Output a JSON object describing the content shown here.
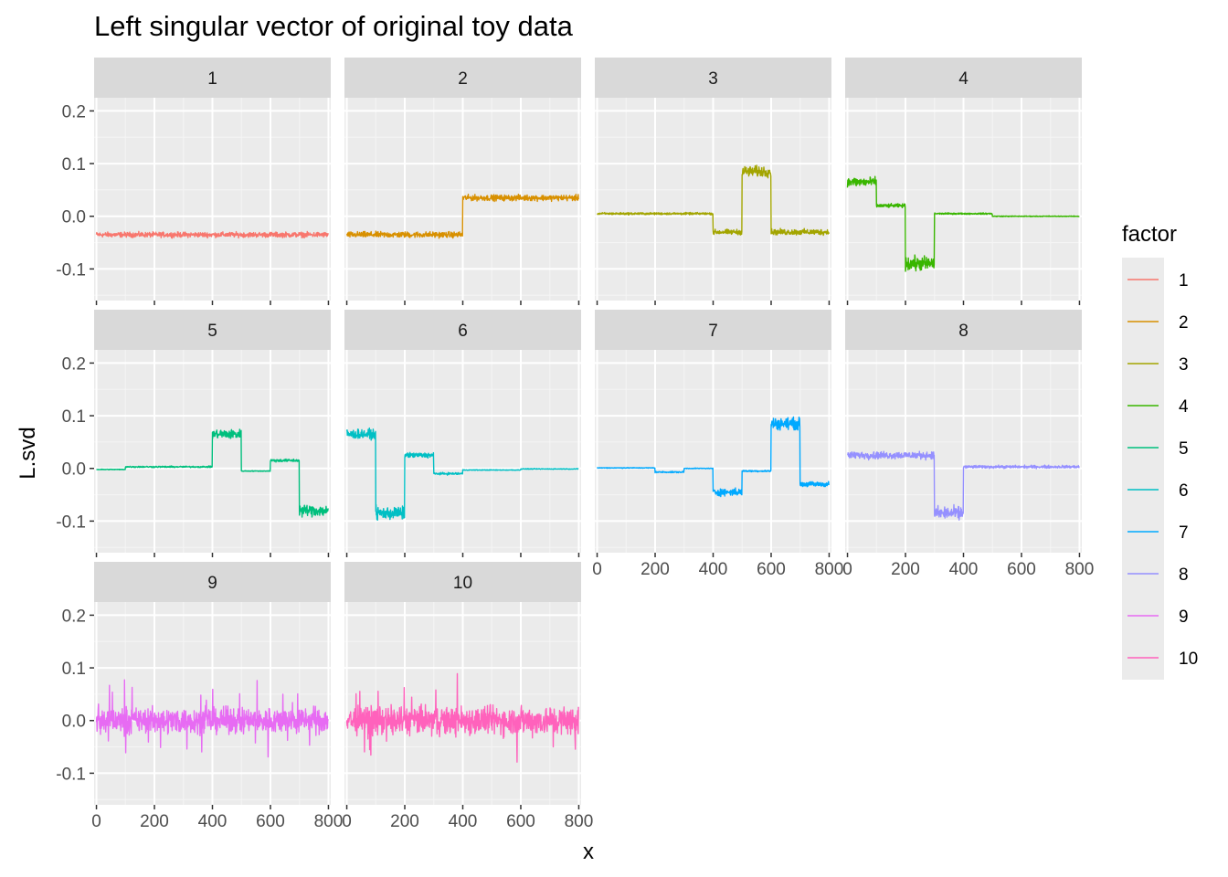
{
  "chart_data": {
    "type": "line",
    "title": "Left singular vector of original toy data",
    "xlabel": "x",
    "ylabel": "L.svd",
    "xlim": [
      -8,
      808
    ],
    "ylim": [
      -0.16,
      0.225
    ],
    "x_ticks": [
      0,
      200,
      400,
      600,
      800
    ],
    "y_ticks": [
      -0.1,
      0.0,
      0.1,
      0.2
    ],
    "y_tick_labels": [
      "-0.1",
      "0.0",
      "0.1",
      "0.2"
    ],
    "n_points": 800,
    "grid": true,
    "facet_layout": "wrap 4 columns, free x axes shown on bottom row of each column",
    "legend": {
      "title": "factor",
      "placement": "right",
      "entries": [
        "1",
        "2",
        "3",
        "4",
        "5",
        "6",
        "7",
        "8",
        "9",
        "10"
      ]
    },
    "series": [
      {
        "name": "1",
        "color": "#F8766D",
        "segments": [
          [
            0,
            800,
            -0.035,
            0.007
          ]
        ]
      },
      {
        "name": "2",
        "color": "#D89000",
        "segments": [
          [
            0,
            400,
            -0.035,
            0.008
          ],
          [
            400,
            800,
            0.035,
            0.008
          ]
        ]
      },
      {
        "name": "3",
        "color": "#A3A500",
        "segments": [
          [
            0,
            400,
            0.005,
            0.003
          ],
          [
            400,
            500,
            -0.03,
            0.007
          ],
          [
            500,
            600,
            0.085,
            0.015
          ],
          [
            600,
            800,
            -0.03,
            0.008
          ]
        ]
      },
      {
        "name": "4",
        "color": "#39B600",
        "segments": [
          [
            0,
            100,
            0.065,
            0.013
          ],
          [
            100,
            200,
            0.02,
            0.005
          ],
          [
            200,
            300,
            -0.09,
            0.02
          ],
          [
            300,
            500,
            0.005,
            0.002
          ],
          [
            500,
            800,
            0.0,
            0.001
          ]
        ]
      },
      {
        "name": "5",
        "color": "#00BF7D",
        "segments": [
          [
            0,
            100,
            -0.002,
            0.001
          ],
          [
            100,
            400,
            0.003,
            0.002
          ],
          [
            400,
            500,
            0.065,
            0.013
          ],
          [
            500,
            600,
            -0.005,
            0.001
          ],
          [
            600,
            700,
            0.015,
            0.004
          ],
          [
            700,
            800,
            -0.08,
            0.016
          ]
        ]
      },
      {
        "name": "6",
        "color": "#00BFC4",
        "segments": [
          [
            0,
            100,
            0.065,
            0.013
          ],
          [
            100,
            200,
            -0.085,
            0.018
          ],
          [
            200,
            300,
            0.025,
            0.007
          ],
          [
            300,
            400,
            -0.01,
            0.003
          ],
          [
            400,
            600,
            -0.003,
            0.001
          ],
          [
            600,
            800,
            -0.001,
            0.001
          ]
        ]
      },
      {
        "name": "7",
        "color": "#00A9FF",
        "segments": [
          [
            0,
            200,
            0.001,
            0.001
          ],
          [
            200,
            300,
            -0.007,
            0.002
          ],
          [
            300,
            400,
            0.0,
            0.001
          ],
          [
            400,
            500,
            -0.045,
            0.01
          ],
          [
            500,
            600,
            -0.005,
            0.002
          ],
          [
            600,
            700,
            0.085,
            0.016
          ],
          [
            700,
            800,
            -0.03,
            0.007
          ]
        ]
      },
      {
        "name": "8",
        "color": "#9590FF",
        "segments": [
          [
            0,
            300,
            0.025,
            0.01
          ],
          [
            300,
            400,
            -0.085,
            0.018
          ],
          [
            400,
            800,
            0.003,
            0.004
          ]
        ]
      },
      {
        "name": "9",
        "color": "#E76BF3",
        "segments": [
          [
            0,
            800,
            0.0,
            0.035
          ]
        ]
      },
      {
        "name": "10",
        "color": "#FF62BC",
        "segments": [
          [
            0,
            800,
            0.0,
            0.04
          ]
        ]
      }
    ],
    "notes_visible": "segments are [x_start, x_end, mean_level, noise_amplitude] read off the panels"
  }
}
